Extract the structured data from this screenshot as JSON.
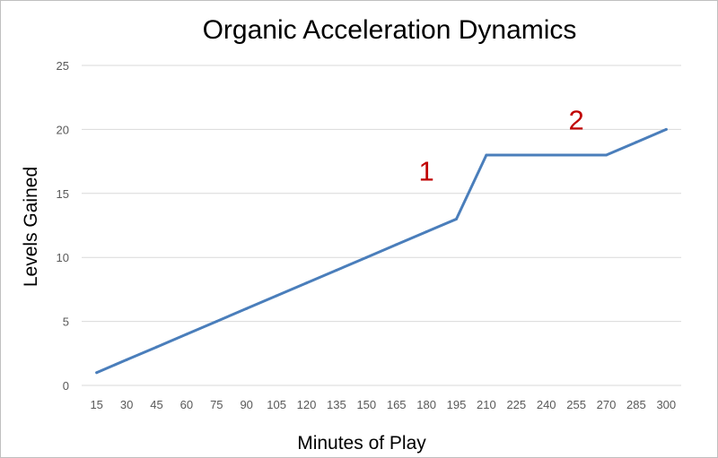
{
  "chart_data": {
    "type": "line",
    "title": "Organic Acceleration Dynamics",
    "xlabel": "Minutes of Play",
    "ylabel": "Levels Gained",
    "categories": [
      "15",
      "30",
      "45",
      "60",
      "75",
      "90",
      "105",
      "120",
      "135",
      "150",
      "165",
      "180",
      "195",
      "210",
      "225",
      "240",
      "255",
      "270",
      "285",
      "300"
    ],
    "series": [
      {
        "values": [
          1,
          2,
          3,
          4,
          5,
          6,
          7,
          8,
          9,
          10,
          11,
          12,
          13,
          18,
          18,
          18,
          18,
          18,
          19,
          20
        ]
      }
    ],
    "ylim": [
      0,
      25
    ],
    "yticks": [
      "0",
      "5",
      "10",
      "15",
      "20",
      "25"
    ],
    "grid": true,
    "legend": "none",
    "annotations": [
      {
        "text": "1",
        "x": "180",
        "y": 16
      },
      {
        "text": "2",
        "x": "255",
        "y": 20
      }
    ],
    "colors": {
      "line": "#4a7ebb",
      "grid": "#d9d9d9",
      "annotation": "#c00000"
    }
  }
}
